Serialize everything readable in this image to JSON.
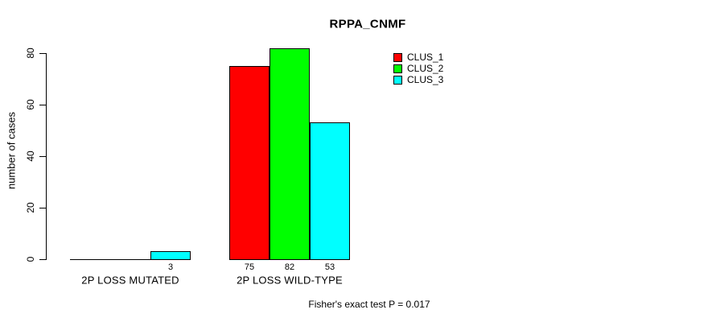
{
  "chart_data": {
    "type": "bar",
    "title": "RPPA_CNMF",
    "ylabel": "number of cases",
    "xlabel": "",
    "categories": [
      "2P LOSS MUTATED",
      "2P LOSS WILD-TYPE"
    ],
    "series": [
      {
        "name": "CLUS_1",
        "color": "#ff0000",
        "values": [
          0,
          75
        ]
      },
      {
        "name": "CLUS_2",
        "color": "#00ff00",
        "values": [
          0,
          82
        ]
      },
      {
        "name": "CLUS_3",
        "color": "#00ffff",
        "values": [
          3,
          53
        ]
      }
    ],
    "ylim": [
      0,
      80
    ],
    "yticks": [
      0,
      20,
      40,
      60,
      80
    ],
    "bar_value_labels_shown": true,
    "legend_position": "top-right",
    "annotation": "Fisher's exact test P = 0.017",
    "grid": false,
    "background": "#ffffff",
    "axis_color": "#000000"
  }
}
